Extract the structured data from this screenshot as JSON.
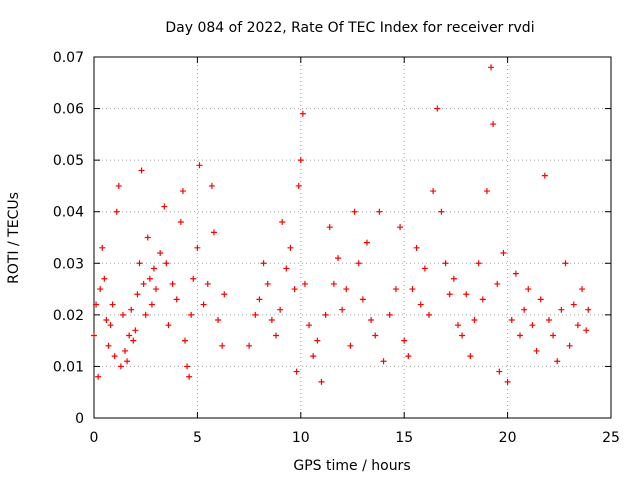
{
  "chart_data": {
    "type": "scatter",
    "title": "Day 084 of 2022, Rate Of TEC Index for receiver rvdi",
    "xlabel": "GPS time / hours",
    "ylabel": "ROTI / TECUs",
    "xlim": [
      0,
      25
    ],
    "ylim": [
      0,
      0.07
    ],
    "x_ticks": [
      0,
      5,
      10,
      15,
      20,
      25
    ],
    "x_tick_labels": [
      "0",
      "5",
      "10",
      "15",
      "20",
      "25"
    ],
    "y_ticks": [
      0,
      0.01,
      0.02,
      0.03,
      0.04,
      0.05,
      0.06,
      0.07
    ],
    "y_tick_labels": [
      "0",
      "0.01",
      "0.02",
      "0.03",
      "0.04",
      "0.05",
      "0.06",
      "0.07"
    ],
    "grid": true,
    "marker": "+",
    "marker_color": "#ff0000",
    "series": [
      {
        "points": [
          [
            0.0,
            0.016
          ],
          [
            0.1,
            0.022
          ],
          [
            0.2,
            0.008
          ],
          [
            0.3,
            0.025
          ],
          [
            0.4,
            0.033
          ],
          [
            0.5,
            0.027
          ],
          [
            0.6,
            0.019
          ],
          [
            0.7,
            0.014
          ],
          [
            0.8,
            0.018
          ],
          [
            0.9,
            0.022
          ],
          [
            1.0,
            0.012
          ],
          [
            1.1,
            0.04
          ],
          [
            1.2,
            0.045
          ],
          [
            1.3,
            0.01
          ],
          [
            1.4,
            0.02
          ],
          [
            1.5,
            0.013
          ],
          [
            1.6,
            0.011
          ],
          [
            1.7,
            0.016
          ],
          [
            1.8,
            0.021
          ],
          [
            1.9,
            0.015
          ],
          [
            2.0,
            0.017
          ],
          [
            2.1,
            0.024
          ],
          [
            2.2,
            0.03
          ],
          [
            2.3,
            0.048
          ],
          [
            2.4,
            0.026
          ],
          [
            2.5,
            0.02
          ],
          [
            2.6,
            0.035
          ],
          [
            2.7,
            0.027
          ],
          [
            2.8,
            0.022
          ],
          [
            2.9,
            0.029
          ],
          [
            3.0,
            0.025
          ],
          [
            3.2,
            0.032
          ],
          [
            3.4,
            0.041
          ],
          [
            3.5,
            0.03
          ],
          [
            3.6,
            0.018
          ],
          [
            3.8,
            0.026
          ],
          [
            4.0,
            0.023
          ],
          [
            4.2,
            0.038
          ],
          [
            4.3,
            0.044
          ],
          [
            4.4,
            0.015
          ],
          [
            4.5,
            0.01
          ],
          [
            4.6,
            0.008
          ],
          [
            4.7,
            0.02
          ],
          [
            4.8,
            0.027
          ],
          [
            5.0,
            0.033
          ],
          [
            5.1,
            0.049
          ],
          [
            5.3,
            0.022
          ],
          [
            5.5,
            0.026
          ],
          [
            5.7,
            0.045
          ],
          [
            5.8,
            0.036
          ],
          [
            6.0,
            0.019
          ],
          [
            6.2,
            0.014
          ],
          [
            6.3,
            0.024
          ],
          [
            7.5,
            0.014
          ],
          [
            7.8,
            0.02
          ],
          [
            8.0,
            0.023
          ],
          [
            8.2,
            0.03
          ],
          [
            8.4,
            0.026
          ],
          [
            8.6,
            0.019
          ],
          [
            8.8,
            0.016
          ],
          [
            9.0,
            0.021
          ],
          [
            9.1,
            0.038
          ],
          [
            9.3,
            0.029
          ],
          [
            9.5,
            0.033
          ],
          [
            9.7,
            0.025
          ],
          [
            9.8,
            0.009
          ],
          [
            9.9,
            0.045
          ],
          [
            10.0,
            0.05
          ],
          [
            10.1,
            0.059
          ],
          [
            10.2,
            0.026
          ],
          [
            10.4,
            0.018
          ],
          [
            10.6,
            0.012
          ],
          [
            10.8,
            0.015
          ],
          [
            11.0,
            0.007
          ],
          [
            11.2,
            0.02
          ],
          [
            11.4,
            0.037
          ],
          [
            11.6,
            0.026
          ],
          [
            11.8,
            0.031
          ],
          [
            12.0,
            0.021
          ],
          [
            12.2,
            0.025
          ],
          [
            12.4,
            0.014
          ],
          [
            12.6,
            0.04
          ],
          [
            12.8,
            0.03
          ],
          [
            13.0,
            0.023
          ],
          [
            13.2,
            0.034
          ],
          [
            13.4,
            0.019
          ],
          [
            13.6,
            0.016
          ],
          [
            13.8,
            0.04
          ],
          [
            14.0,
            0.011
          ],
          [
            14.3,
            0.02
          ],
          [
            14.6,
            0.025
          ],
          [
            14.8,
            0.037
          ],
          [
            15.0,
            0.015
          ],
          [
            15.2,
            0.012
          ],
          [
            15.4,
            0.025
          ],
          [
            15.6,
            0.033
          ],
          [
            15.8,
            0.022
          ],
          [
            16.0,
            0.029
          ],
          [
            16.2,
            0.02
          ],
          [
            16.4,
            0.044
          ],
          [
            16.6,
            0.06
          ],
          [
            16.8,
            0.04
          ],
          [
            17.0,
            0.03
          ],
          [
            17.2,
            0.024
          ],
          [
            17.4,
            0.027
          ],
          [
            17.6,
            0.018
          ],
          [
            17.8,
            0.016
          ],
          [
            18.0,
            0.024
          ],
          [
            18.2,
            0.012
          ],
          [
            18.4,
            0.019
          ],
          [
            18.6,
            0.03
          ],
          [
            18.8,
            0.023
          ],
          [
            19.0,
            0.044
          ],
          [
            19.2,
            0.068
          ],
          [
            19.3,
            0.057
          ],
          [
            19.5,
            0.026
          ],
          [
            19.6,
            0.009
          ],
          [
            19.8,
            0.032
          ],
          [
            20.0,
            0.007
          ],
          [
            20.2,
            0.019
          ],
          [
            20.4,
            0.028
          ],
          [
            20.6,
            0.016
          ],
          [
            20.8,
            0.021
          ],
          [
            21.0,
            0.025
          ],
          [
            21.2,
            0.018
          ],
          [
            21.4,
            0.013
          ],
          [
            21.6,
            0.023
          ],
          [
            21.8,
            0.047
          ],
          [
            22.0,
            0.019
          ],
          [
            22.2,
            0.016
          ],
          [
            22.4,
            0.011
          ],
          [
            22.6,
            0.021
          ],
          [
            22.8,
            0.03
          ],
          [
            23.0,
            0.014
          ],
          [
            23.2,
            0.022
          ],
          [
            23.4,
            0.018
          ],
          [
            23.6,
            0.025
          ],
          [
            23.8,
            0.017
          ],
          [
            23.9,
            0.021
          ]
        ]
      }
    ]
  }
}
